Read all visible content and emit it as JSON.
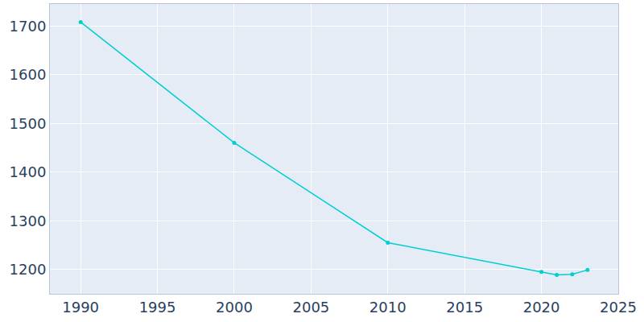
{
  "chart_data": {
    "type": "line",
    "x": [
      1990,
      2000,
      2010,
      2020,
      2021,
      2022,
      2023
    ],
    "values": [
      1708,
      1460,
      1255,
      1195,
      1189,
      1190,
      1199
    ],
    "color": "#00ced1",
    "marker": "circle",
    "line_style": "solid",
    "xlim": [
      1988,
      2025
    ],
    "xticks": [
      1990,
      1995,
      2000,
      2005,
      2010,
      2015,
      2020,
      2025
    ],
    "ylim": [
      1150,
      1745
    ],
    "yticks": [
      1200,
      1300,
      1400,
      1500,
      1600,
      1700
    ],
    "grid": true
  }
}
